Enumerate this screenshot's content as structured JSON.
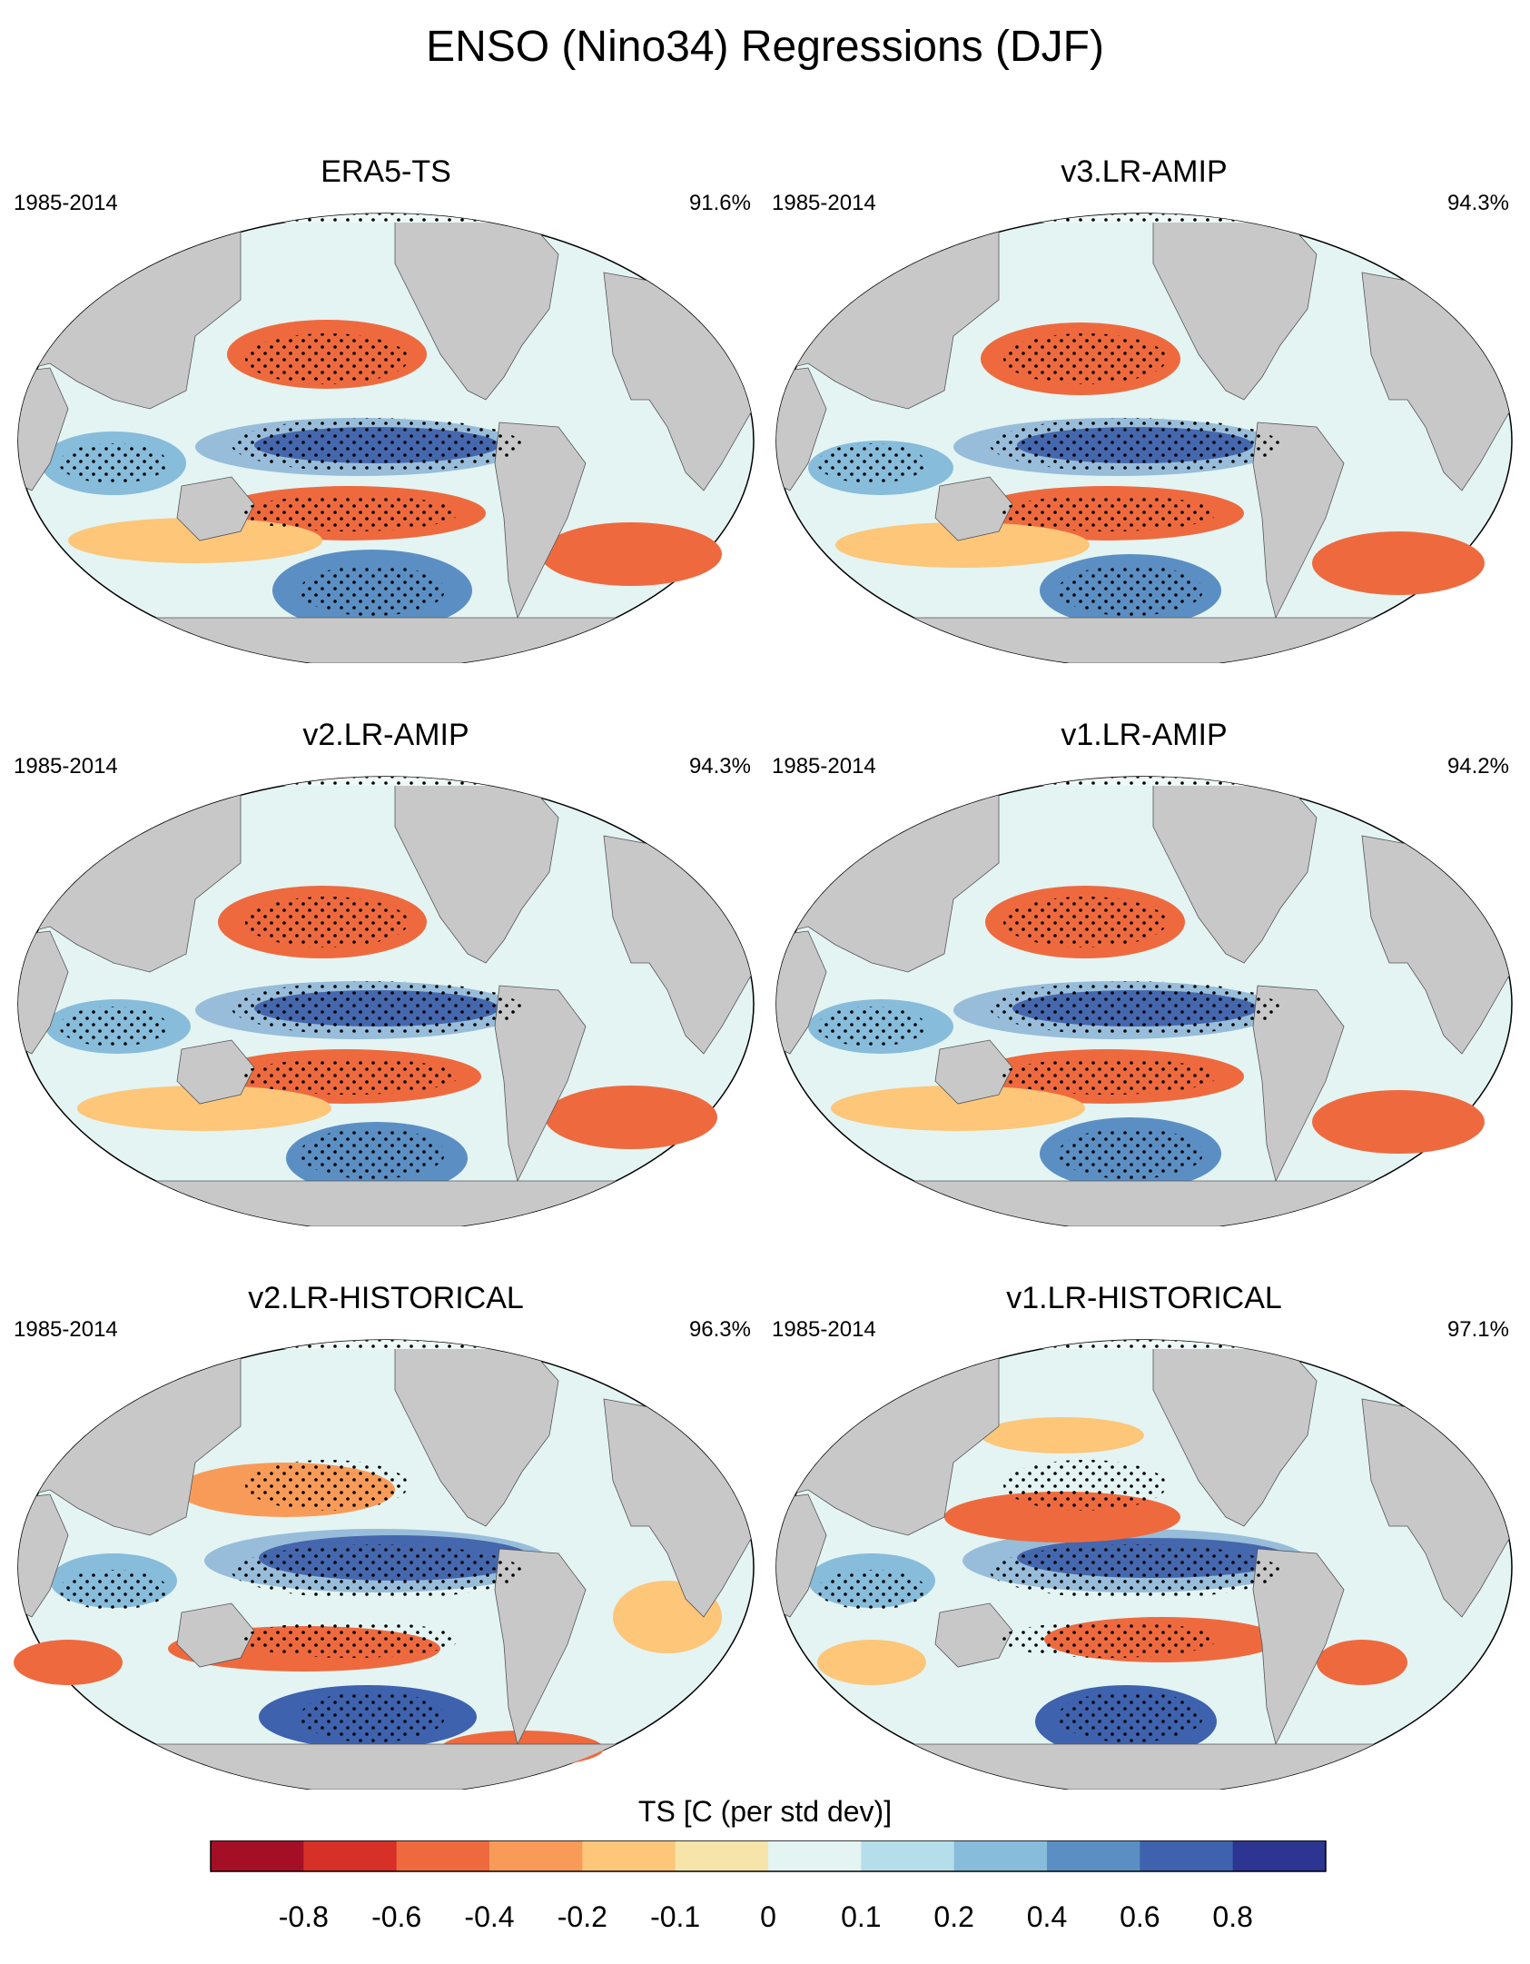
{
  "title": "ENSO (Nino34) Regressions (DJF)",
  "panels": [
    {
      "name": "ERA5-TS",
      "period": "1985-2014",
      "percent": "91.6%"
    },
    {
      "name": "v3.LR-AMIP",
      "period": "1985-2014",
      "percent": "94.3%"
    },
    {
      "name": "v2.LR-AMIP",
      "period": "1985-2014",
      "percent": "94.3%"
    },
    {
      "name": "v1.LR-AMIP",
      "period": "1985-2014",
      "percent": "94.2%"
    },
    {
      "name": "v2.LR-HISTORICAL",
      "period": "1985-2014",
      "percent": "96.3%"
    },
    {
      "name": "v1.LR-HISTORICAL",
      "period": "1985-2014",
      "percent": "97.1%"
    }
  ],
  "colorbar": {
    "label": "TS [C (per std dev)]",
    "ticks": [
      "-0.8",
      "-0.6",
      "-0.4",
      "-0.2",
      "-0.1",
      "0",
      "0.1",
      "0.2",
      "0.4",
      "0.6",
      "0.8"
    ],
    "colors": [
      "#a50f26",
      "#d73027",
      "#ee6a3e",
      "#f99b58",
      "#fdc679",
      "#f6e4a8",
      "#e3f4f3",
      "#b5deeb",
      "#87bcdb",
      "#5b8fc4",
      "#3e62ae",
      "#2c3592"
    ]
  },
  "map_colors": {
    "land": "#c8c8c8",
    "ocean": "#e3f4f3",
    "arctic": "#eef8f6"
  }
}
